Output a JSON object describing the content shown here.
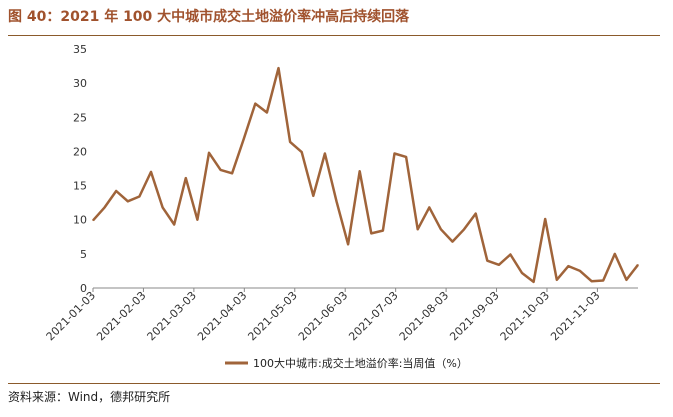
{
  "title": "图 40：2021 年 100 大中城市成交土地溢价率冲高后持续回落",
  "source": "资料来源：Wind，德邦研究所",
  "colors": {
    "series": "#A0643A",
    "title": "#A0522D",
    "rule": "#8B5A2B"
  },
  "chart_data": {
    "type": "line",
    "title": "2021 年 100 大中城市成交土地溢价率冲高后持续回落",
    "xlabel": "",
    "ylabel": "",
    "ylim": [
      0,
      35
    ],
    "yticks": [
      "0",
      "5",
      "10",
      "15",
      "20",
      "25",
      "30",
      "35"
    ],
    "xticks": [
      "2021-01-03",
      "2021-02-03",
      "2021-03-03",
      "2021-04-03",
      "2021-05-03",
      "2021-06-03",
      "2021-07-03",
      "2021-08-03",
      "2021-09-03",
      "2021-10-03",
      "2021-11-03"
    ],
    "legend": "100大中城市:成交土地溢价率:当周值（%）",
    "legend_position": "bottom-center",
    "series": [
      {
        "name": "100大中城市:成交土地溢价率:当周值（%）",
        "values": [
          9.9,
          11.8,
          14.2,
          12.7,
          13.4,
          17.0,
          11.8,
          9.3,
          16.1,
          10.0,
          19.8,
          17.3,
          16.8,
          21.8,
          27.0,
          25.7,
          32.2,
          21.4,
          19.9,
          13.5,
          19.7,
          12.7,
          6.4,
          17.1,
          8.0,
          8.4,
          19.7,
          19.2,
          8.6,
          11.8,
          8.6,
          6.8,
          8.6,
          10.9,
          4.0,
          3.4,
          4.9,
          2.2,
          0.9,
          10.1,
          1.2,
          3.2,
          2.5,
          1.0,
          1.1,
          5.0,
          1.2,
          3.4
        ]
      }
    ]
  }
}
